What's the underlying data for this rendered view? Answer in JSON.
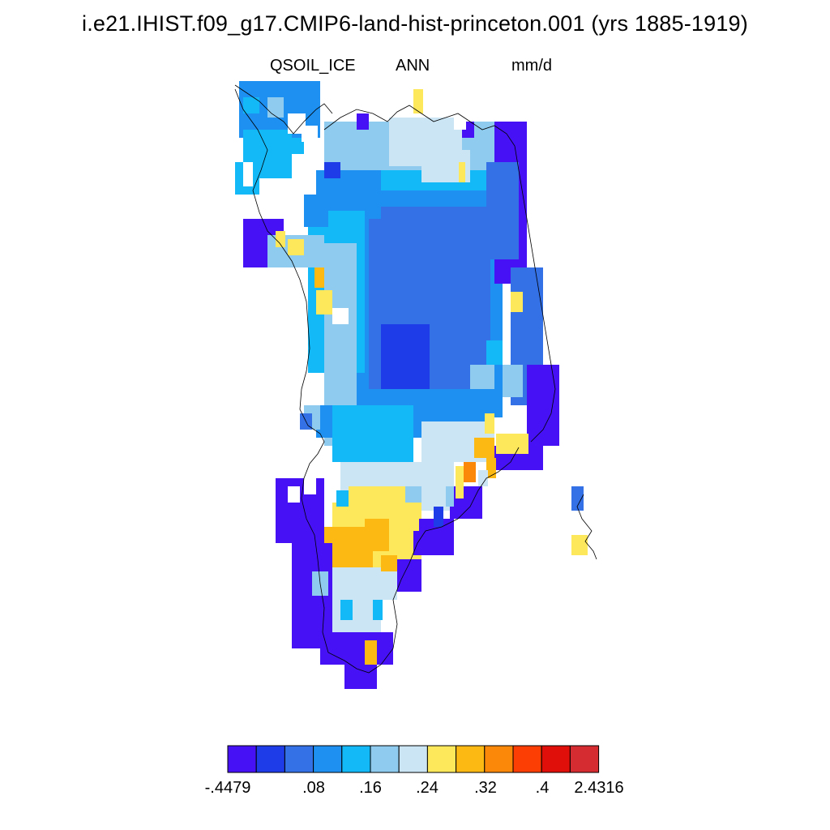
{
  "title": "i.e21.IHIST.f09_g17.CMIP6-land-hist-princeton.001 (yrs 1885-1919)",
  "variable": "QSOIL_ICE",
  "period": "ANN",
  "units": "mm/d",
  "colorbar": {
    "colors": [
      "#4612f5",
      "#1e3ce8",
      "#3470e6",
      "#1d90f1",
      "#13b9f7",
      "#8ecbef",
      "#cbe5f5",
      "#fde75a",
      "#fcb913",
      "#fb8808",
      "#fc3e04",
      "#e10f09",
      "#d42c30"
    ],
    "labels": [
      "-.4479",
      ".08",
      ".16",
      ".24",
      ".32",
      ".4",
      "2.4316"
    ]
  },
  "map_palette": {
    "purple": "#4612f5",
    "dark_blue": "#1e3ce8",
    "mid_blue": "#3470e6",
    "blue": "#1d90f1",
    "cyan": "#13b9f7",
    "light_blue": "#8ecbef",
    "pale_blue": "#cbe5f5",
    "yellow": "#fde75a",
    "gold": "#fcb913",
    "orange": "#fb8808",
    "coast": "#000000"
  }
}
